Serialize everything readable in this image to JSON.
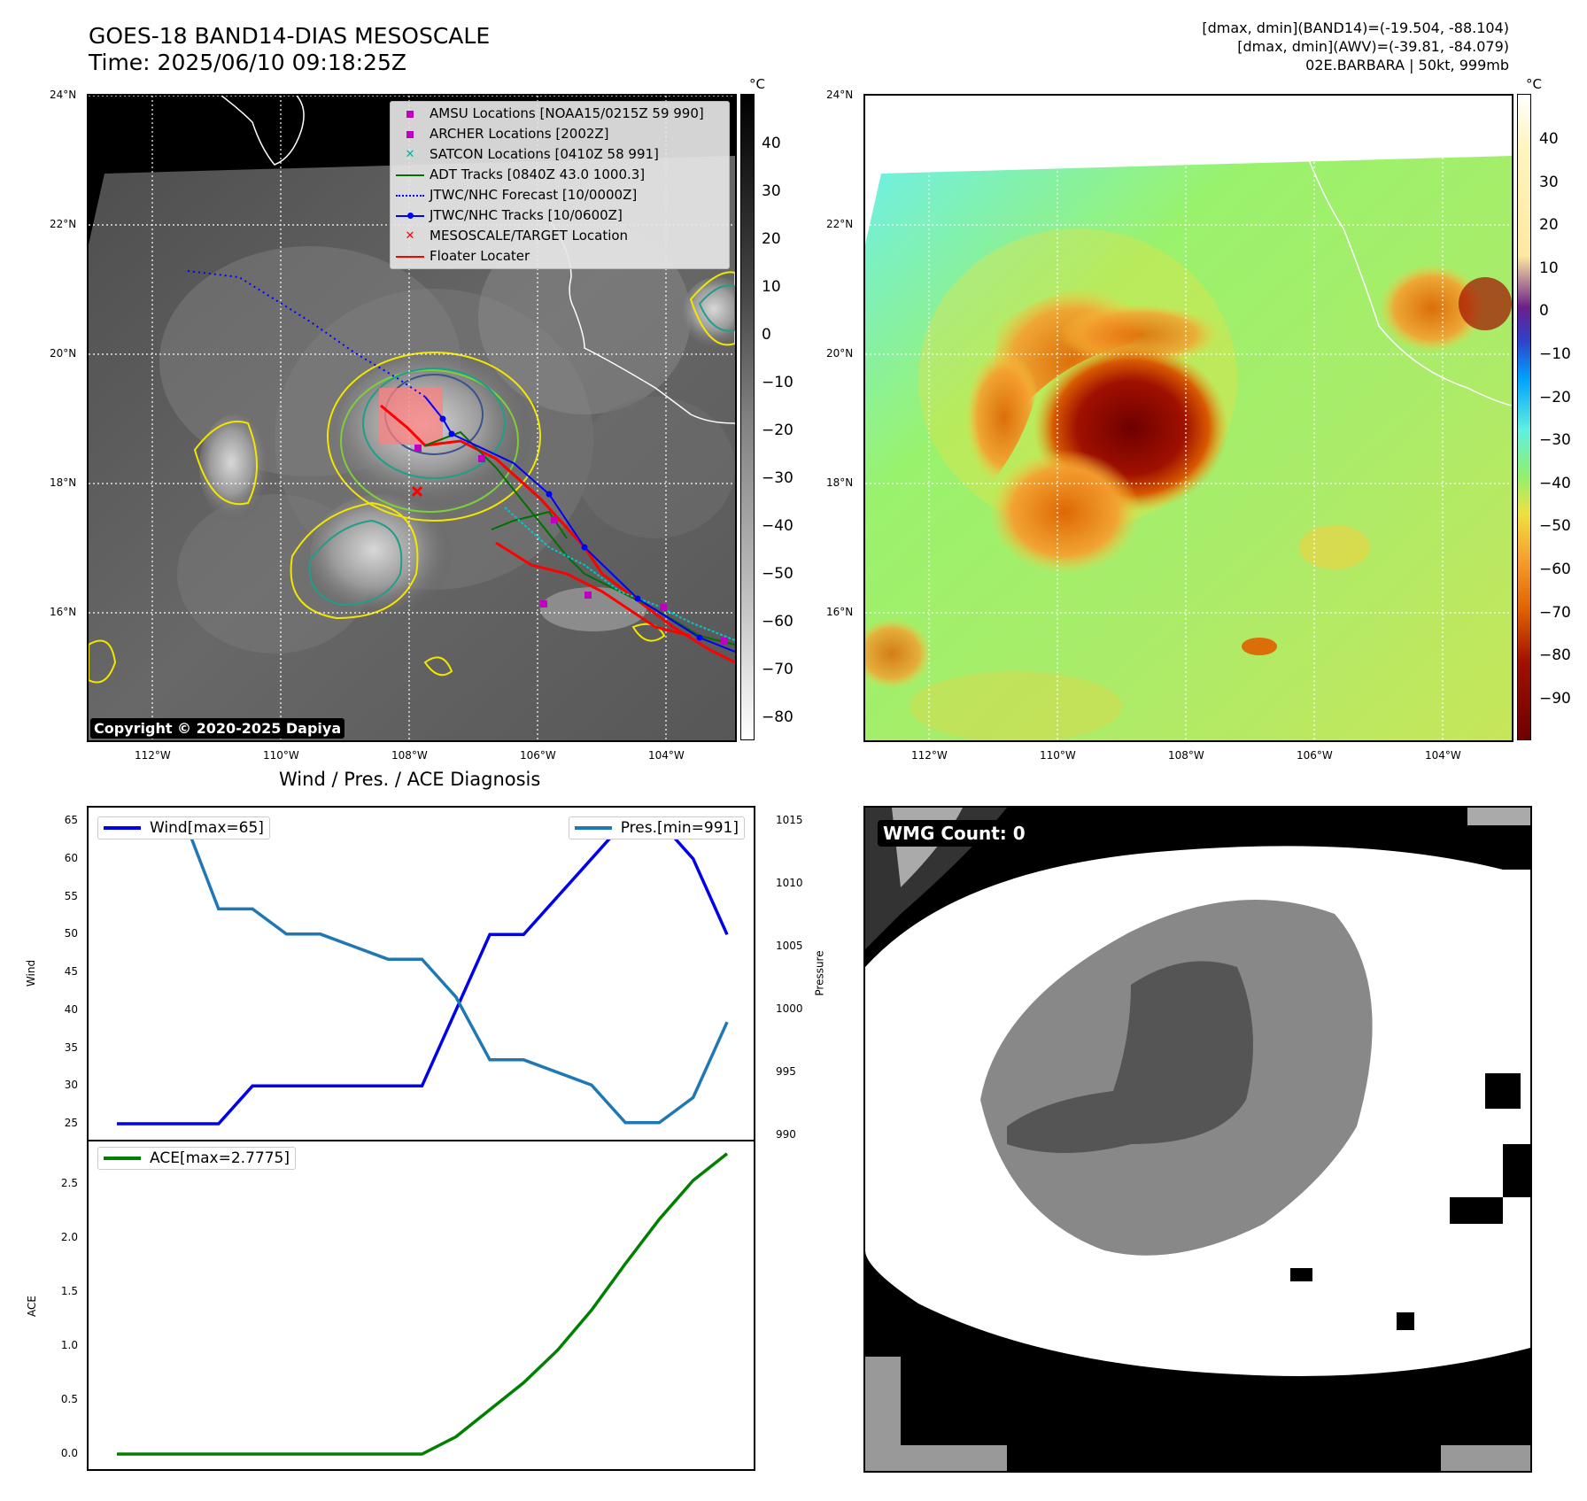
{
  "header": {
    "title_line1": "GOES-18 BAND14-DIAS MESOSCALE",
    "title_line2": "Time: 2025/06/10 09:18:25Z",
    "info_line1": "[dmax, dmin](BAND14)=(-19.504, -88.104)",
    "info_line2": "[dmax, dmin](AWV)=(-39.81, -84.079)",
    "info_line3": "02E.BARBARA | 50kt, 999mb"
  },
  "map": {
    "lat_labels": [
      "24°N",
      "22°N",
      "20°N",
      "18°N",
      "16°N"
    ],
    "lon_labels": [
      "112°W",
      "110°W",
      "108°W",
      "106°W",
      "104°W"
    ],
    "copyright": "Copyright © 2020-2025 Dapiya",
    "legend": [
      {
        "label": "AMSU Locations [NOAA15/0215Z 59 990]",
        "symbol": "square",
        "color": "#c000c0"
      },
      {
        "label": "ARCHER Locations [2002Z]",
        "symbol": "square",
        "color": "#c000c0"
      },
      {
        "label": "SATCON Locations [0410Z 58 991]",
        "symbol": "x",
        "color": "#00b0b0"
      },
      {
        "label": "ADT Tracks [0840Z 43.0 1000.3]",
        "symbol": "line",
        "color": "#007000"
      },
      {
        "label": "JTWC/NHC Forecast [10/0000Z]",
        "symbol": "dotted",
        "color": "#0000ff"
      },
      {
        "label": "JTWC/NHC Tracks [10/0600Z]",
        "symbol": "line-dot",
        "color": "#0000ff"
      },
      {
        "label": "MESOSCALE/TARGET Location",
        "symbol": "x",
        "color": "#ff0000"
      },
      {
        "label": "Floater Locater",
        "symbol": "line",
        "color": "#ff0000"
      }
    ]
  },
  "colorbars": {
    "unit": "°C",
    "left_ticks": [
      "40",
      "30",
      "20",
      "10",
      "0",
      "−10",
      "−20",
      "−30",
      "−40",
      "−50",
      "−60",
      "−70",
      "−80"
    ],
    "right_ticks": [
      "40",
      "30",
      "20",
      "10",
      "0",
      "−10",
      "−20",
      "−30",
      "−40",
      "−50",
      "−60",
      "−70",
      "−80",
      "−90"
    ]
  },
  "diagnosis": {
    "title": "Wind / Pres. / ACE Diagnosis",
    "wind_legend": "Wind[max=65]",
    "pres_legend": "Pres.[min=991]",
    "ace_legend": "ACE[max=2.7775]",
    "wind_ylabel": "Wind",
    "pres_ylabel": "Pressure",
    "ace_ylabel": "ACE",
    "wind_ticks": [
      "65",
      "60",
      "55",
      "50",
      "45",
      "40",
      "35",
      "30",
      "25"
    ],
    "pres_ticks": [
      "1015",
      "1010",
      "1005",
      "1000",
      "995",
      "990"
    ],
    "ace_ticks": [
      "2.5",
      "2.0",
      "1.5",
      "1.0",
      "0.5",
      "0.0"
    ]
  },
  "wmg": {
    "label": "WMG Count: 0"
  },
  "chart_data": [
    {
      "type": "line",
      "name": "Wind / Pres.",
      "x": [
        0,
        1,
        2,
        3,
        4,
        5,
        6,
        7,
        8,
        9,
        10,
        11,
        12,
        13,
        14,
        15,
        16,
        17,
        18
      ],
      "series": [
        {
          "name": "Wind[max=65]",
          "color": "#0000ee",
          "axis": "left",
          "values": [
            25,
            25,
            25,
            25,
            30,
            30,
            30,
            30,
            30,
            30,
            40,
            50,
            50,
            55,
            60,
            65,
            65,
            60,
            50
          ]
        },
        {
          "name": "Pres.[min=991]",
          "color": "#1f77b4",
          "axis": "right",
          "values": [
            1015,
            1015,
            1015,
            1008,
            1008,
            1006,
            1006,
            1005,
            1004,
            1004,
            1001,
            996,
            996,
            995,
            994,
            991,
            991,
            993,
            999
          ]
        }
      ],
      "ylim": [
        25,
        65
      ],
      "y2lim": [
        990,
        1015
      ]
    },
    {
      "type": "line",
      "name": "ACE",
      "x": [
        0,
        1,
        2,
        3,
        4,
        5,
        6,
        7,
        8,
        9,
        10,
        11,
        12,
        13,
        14,
        15,
        16,
        17,
        18
      ],
      "series": [
        {
          "name": "ACE[max=2.7775]",
          "color": "#008000",
          "values": [
            0,
            0,
            0,
            0,
            0,
            0,
            0,
            0,
            0,
            0,
            0.16,
            0.41,
            0.66,
            0.96,
            1.33,
            1.76,
            2.17,
            2.53,
            2.7775
          ]
        }
      ],
      "ylim": [
        0,
        2.8
      ]
    }
  ]
}
